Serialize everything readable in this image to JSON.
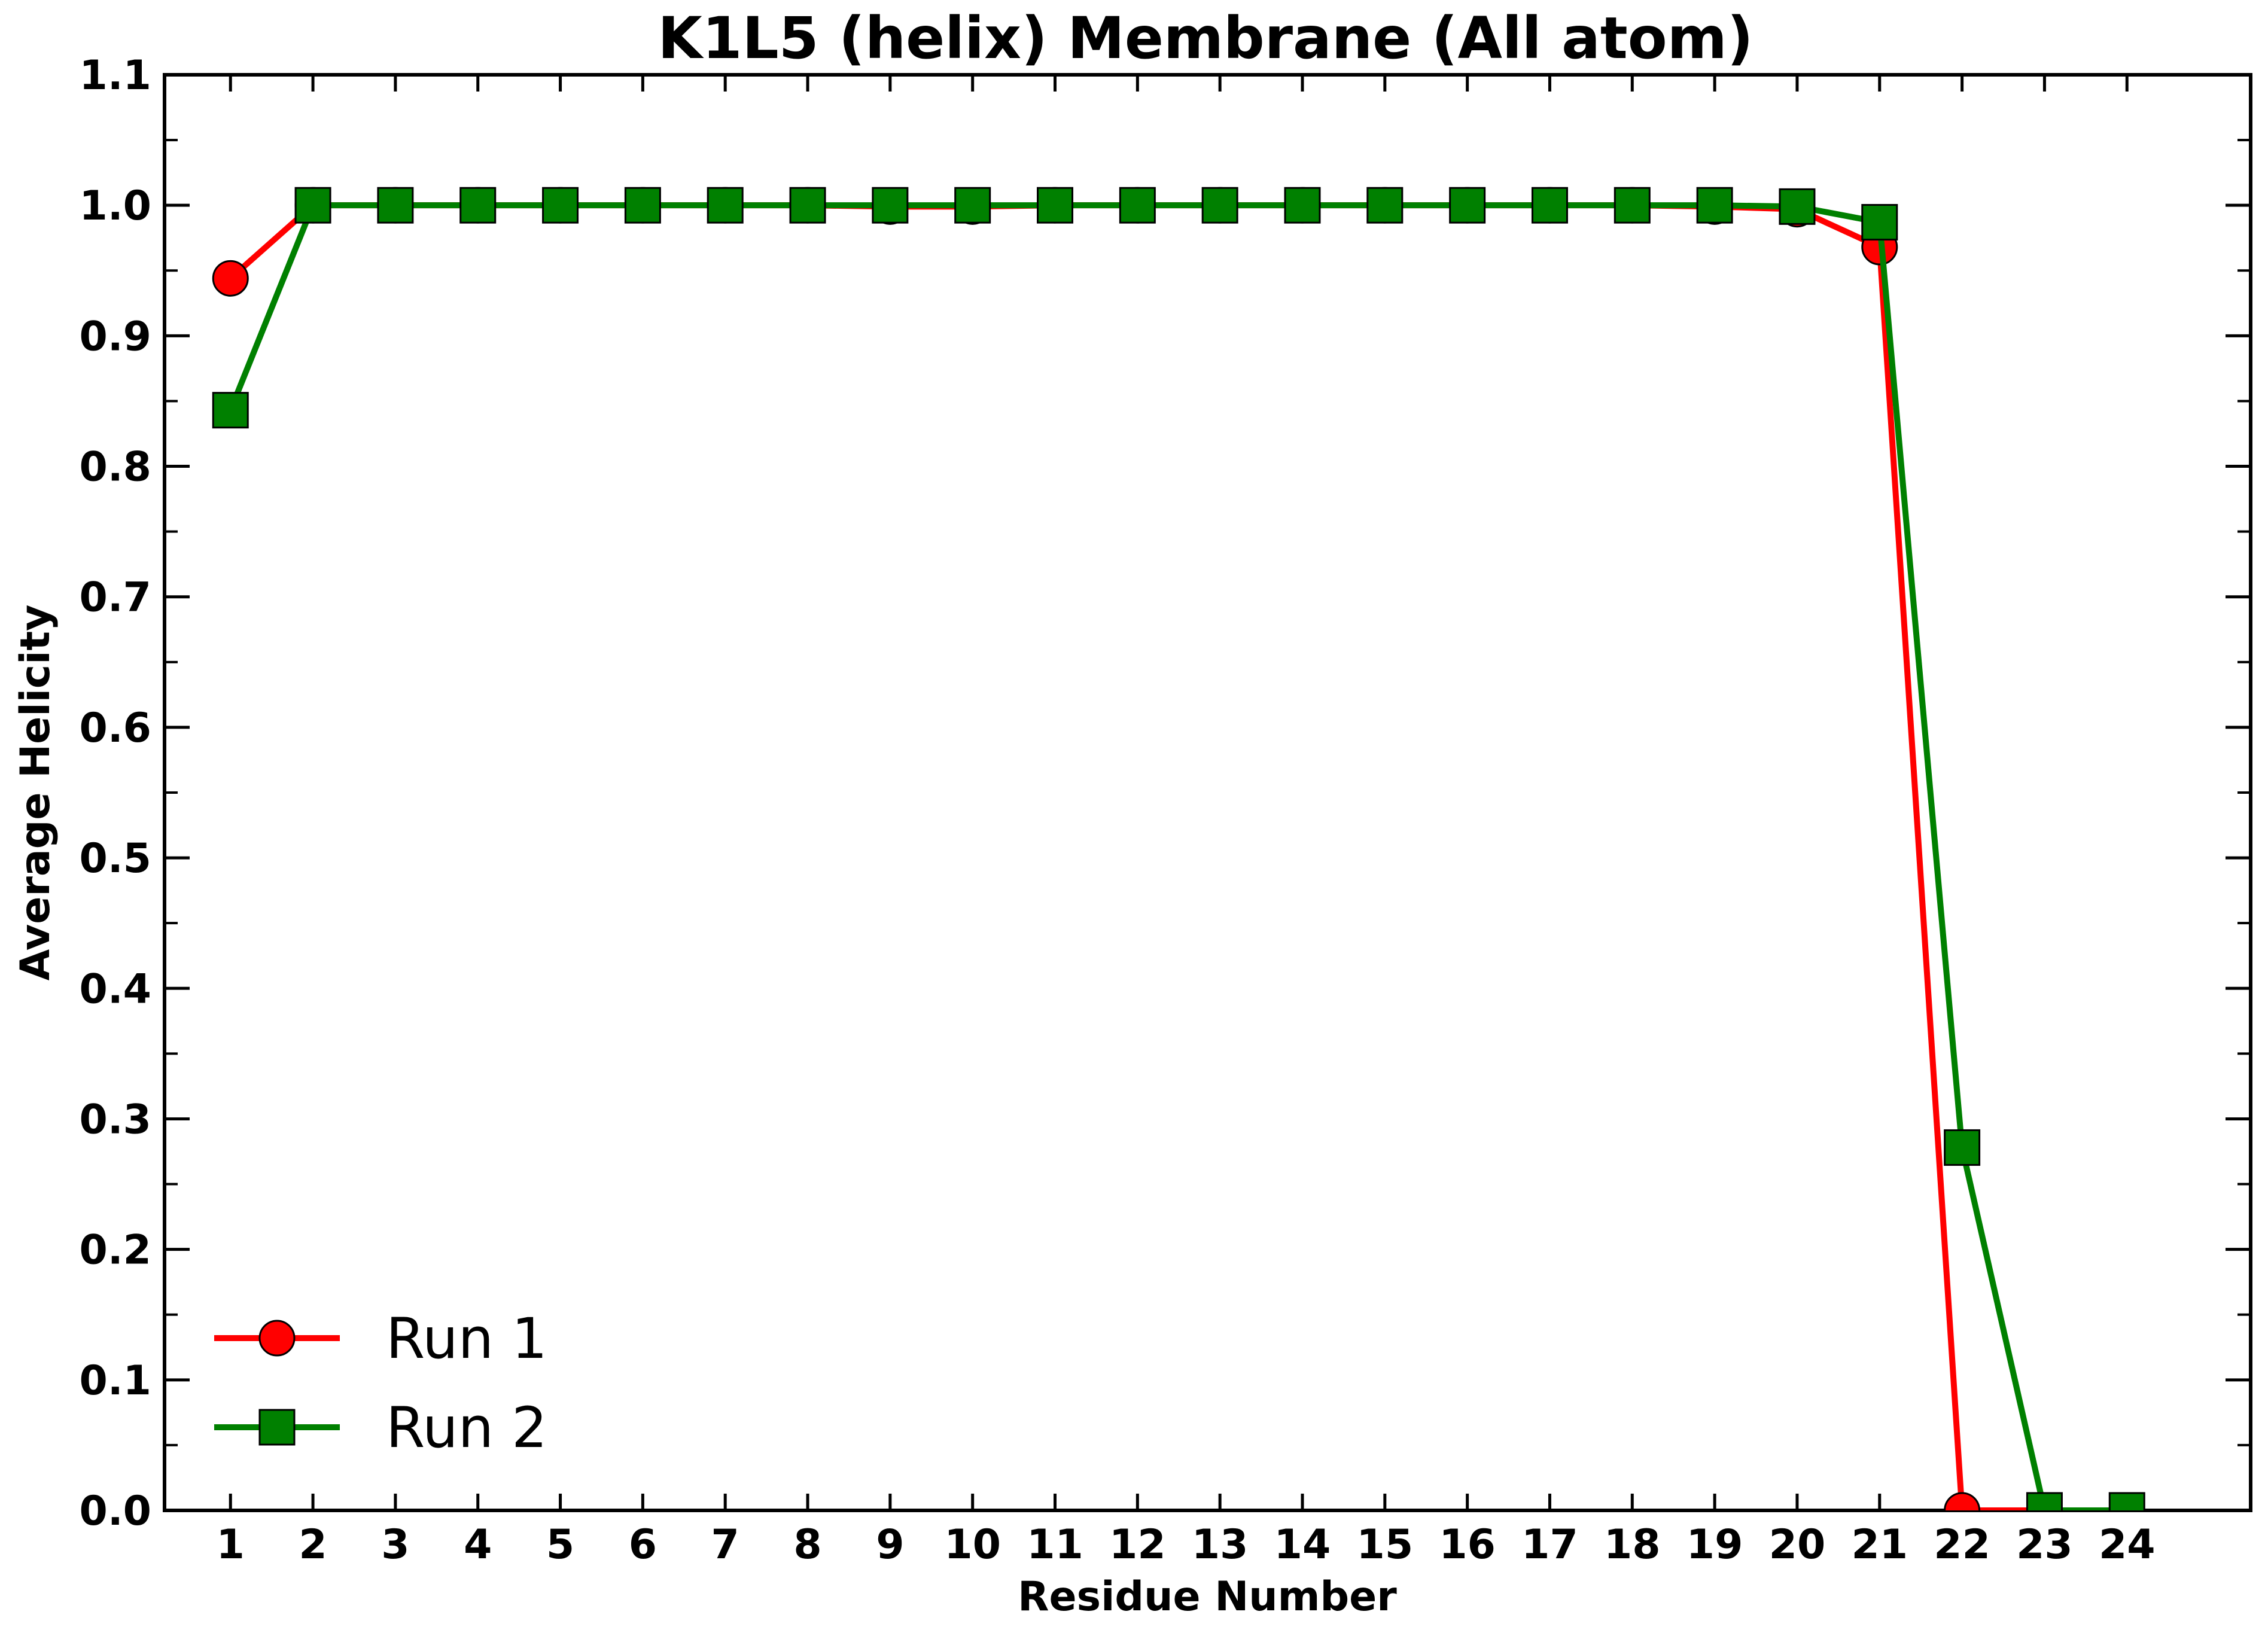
{
  "chart_data": {
    "type": "line",
    "title": "K1L5 (helix) Membrane (All atom)",
    "xlabel": "Residue Number",
    "ylabel": "Average Helicity",
    "xlim": [
      0.2,
      25.5
    ],
    "ylim": [
      0.0,
      1.1
    ],
    "x_ticks": [
      "1",
      "2",
      "3",
      "4",
      "5",
      "6",
      "7",
      "8",
      "9",
      "10",
      "11",
      "12",
      "13",
      "14",
      "15",
      "16",
      "17",
      "18",
      "19",
      "20",
      "21",
      "22",
      "23",
      "24"
    ],
    "y_ticks": [
      "0.0",
      "0.1",
      "0.2",
      "0.3",
      "0.4",
      "0.5",
      "0.6",
      "0.7",
      "0.8",
      "0.9",
      "1.0",
      "1.1"
    ],
    "grid": false,
    "legend_position": "lower-left",
    "series": [
      {
        "name": "Run 1",
        "color": "#ff0000",
        "marker": "circle",
        "x": [
          1,
          2,
          3,
          4,
          5,
          6,
          7,
          8,
          9,
          10,
          11,
          12,
          13,
          14,
          15,
          16,
          17,
          18,
          19,
          20,
          21,
          22,
          23,
          24
        ],
        "y": [
          0.944,
          1.0,
          1.0,
          1.0,
          1.0,
          1.0,
          1.0,
          1.0,
          0.999,
          0.999,
          1.0,
          1.0,
          1.0,
          1.0,
          1.0,
          1.0,
          1.0,
          1.0,
          0.999,
          0.997,
          0.968,
          0.0,
          0.0,
          0.0
        ]
      },
      {
        "name": "Run 2",
        "color": "#008000",
        "marker": "square",
        "x": [
          1,
          2,
          3,
          4,
          5,
          6,
          7,
          8,
          9,
          10,
          11,
          12,
          13,
          14,
          15,
          16,
          17,
          18,
          19,
          20,
          21,
          22,
          23,
          24
        ],
        "y": [
          0.843,
          1.0,
          1.0,
          1.0,
          1.0,
          1.0,
          1.0,
          1.0,
          1.0,
          1.0,
          1.0,
          1.0,
          1.0,
          1.0,
          1.0,
          1.0,
          1.0,
          1.0,
          1.0,
          0.999,
          0.987,
          0.278,
          0.0,
          0.0
        ]
      }
    ]
  }
}
